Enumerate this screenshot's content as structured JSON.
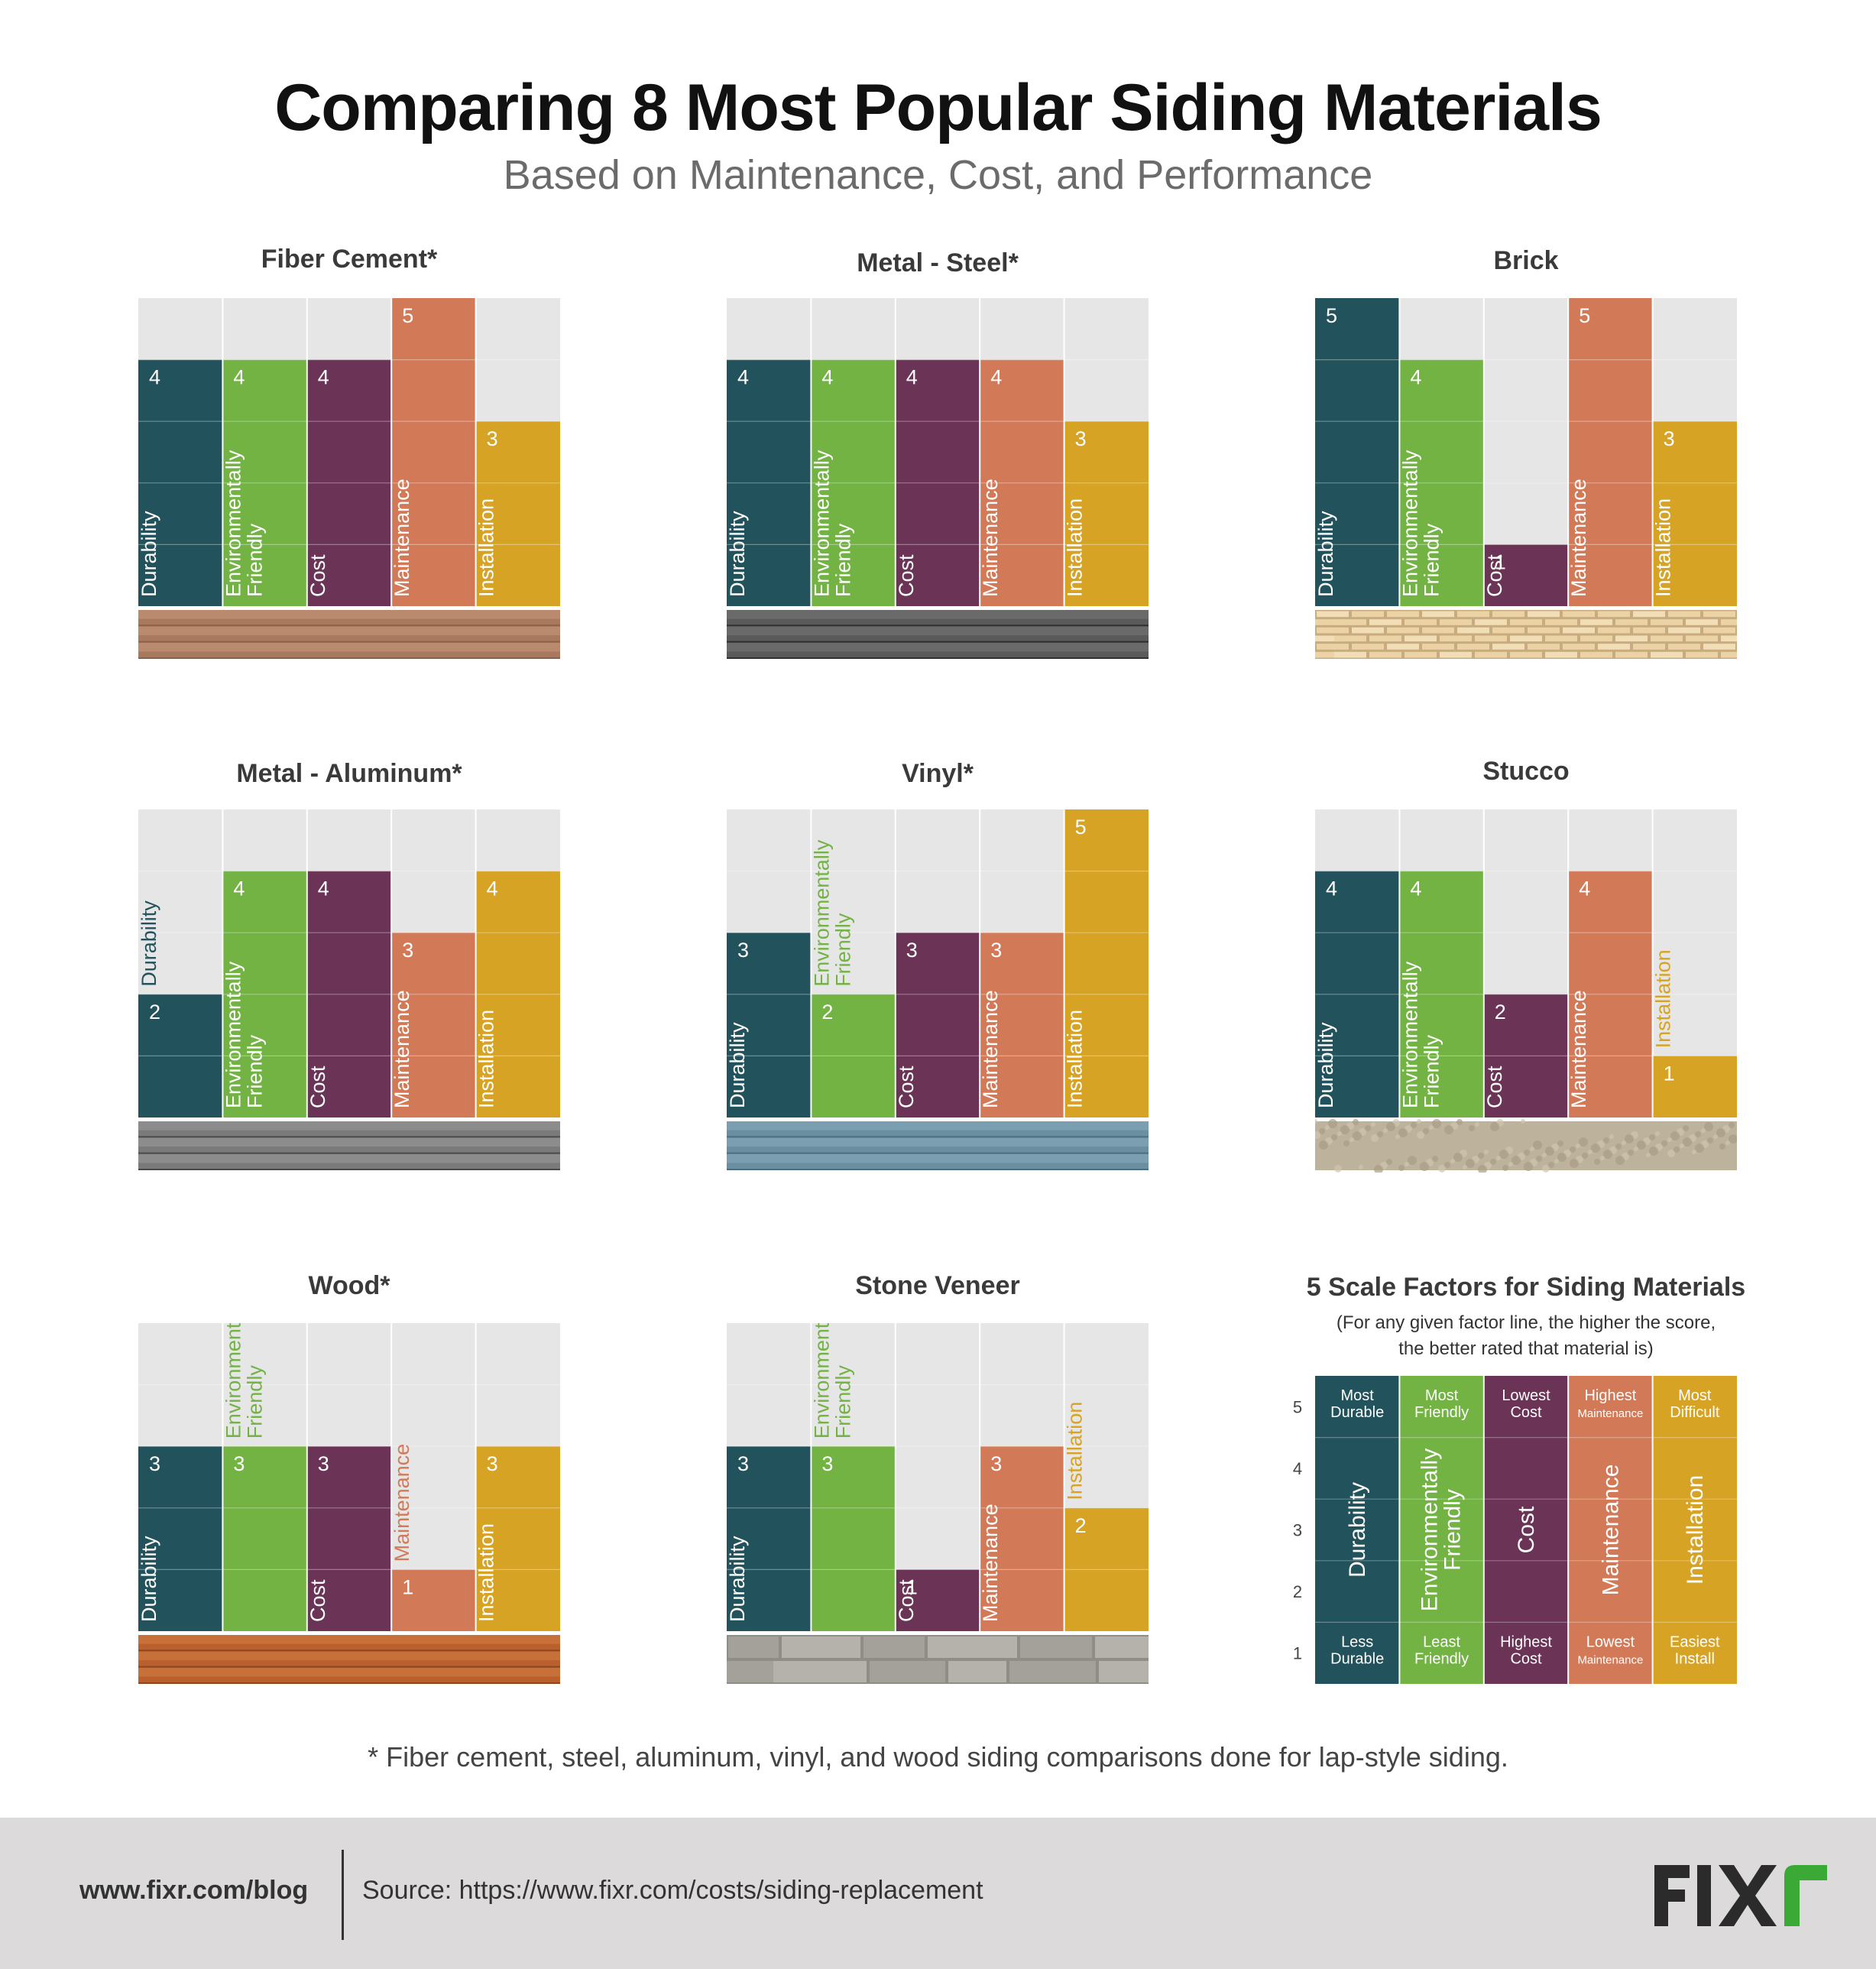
{
  "header": {
    "title": "Comparing 8 Most Popular Siding Materials",
    "subtitle": "Based on Maintenance, Cost, and Performance"
  },
  "colors": {
    "durability": "#22525b",
    "environment": "#72b343",
    "cost": "#6b3356",
    "maintenance": "#d27a58",
    "installation": "#d6a324",
    "grid_bg": "#e6e6e6"
  },
  "chart_data": [
    {
      "type": "bar",
      "title": "Fiber Cement*",
      "categories": [
        "Durability",
        "Environmentally Friendly",
        "Cost",
        "Maintenance",
        "Installation"
      ],
      "values": [
        4,
        4,
        4,
        5,
        3
      ],
      "ylim": [
        0,
        5
      ],
      "texture": "fiber-cement-lap"
    },
    {
      "type": "bar",
      "title": "Metal - Steel*",
      "categories": [
        "Durability",
        "Environmentally Friendly",
        "Cost",
        "Maintenance",
        "Installation"
      ],
      "values": [
        4,
        4,
        4,
        4,
        3
      ],
      "ylim": [
        0,
        5
      ],
      "texture": "steel-lap"
    },
    {
      "type": "bar",
      "title": "Brick",
      "categories": [
        "Durability",
        "Environmentally Friendly",
        "Cost",
        "Maintenance",
        "Installation"
      ],
      "values": [
        5,
        4,
        1,
        5,
        3
      ],
      "ylim": [
        0,
        5
      ],
      "texture": "brick"
    },
    {
      "type": "bar",
      "title": "Metal - Aluminum*",
      "categories": [
        "Durability",
        "Environmentally Friendly",
        "Cost",
        "Maintenance",
        "Installation"
      ],
      "values": [
        2,
        4,
        4,
        3,
        4
      ],
      "ylim": [
        0,
        5
      ],
      "texture": "aluminum-lap"
    },
    {
      "type": "bar",
      "title": "Vinyl*",
      "categories": [
        "Durability",
        "Environmentally Friendly",
        "Cost",
        "Maintenance",
        "Installation"
      ],
      "values": [
        3,
        2,
        3,
        3,
        5
      ],
      "ylim": [
        0,
        5
      ],
      "texture": "vinyl-lap"
    },
    {
      "type": "bar",
      "title": "Stucco",
      "categories": [
        "Durability",
        "Environmentally Friendly",
        "Cost",
        "Maintenance",
        "Installation"
      ],
      "values": [
        4,
        4,
        2,
        4,
        1
      ],
      "ylim": [
        0,
        5
      ],
      "texture": "stucco"
    },
    {
      "type": "bar",
      "title": "Wood*",
      "categories": [
        "Durability",
        "Environmentally Friendly",
        "Cost",
        "Maintenance",
        "Installation"
      ],
      "values": [
        3,
        3,
        3,
        1,
        3
      ],
      "ylim": [
        0,
        5
      ],
      "texture": "wood-lap"
    },
    {
      "type": "bar",
      "title": "Stone Veneer",
      "categories": [
        "Durability",
        "Environmentally Friendly",
        "Cost",
        "Maintenance",
        "Installation"
      ],
      "values": [
        3,
        3,
        1,
        3,
        2
      ],
      "ylim": [
        0,
        5
      ],
      "texture": "stone"
    }
  ],
  "legend": {
    "title": "5 Scale Factors for Siding Materials",
    "note_line1": "(For any given factor line, the higher the score,",
    "note_line2": "the better rated that material is)",
    "scale": [
      "5",
      "4",
      "3",
      "2",
      "1"
    ],
    "factors": [
      {
        "label": "Durability",
        "top": [
          "Most",
          "Durable"
        ],
        "bottom": [
          "Less",
          "Durable"
        ]
      },
      {
        "label": "Environmentally Friendly",
        "top": [
          "Most",
          "Friendly"
        ],
        "bottom": [
          "Least",
          "Friendly"
        ]
      },
      {
        "label": "Cost",
        "top": [
          "Lowest",
          "Cost"
        ],
        "bottom": [
          "Highest",
          "Cost"
        ]
      },
      {
        "label": "Maintenance",
        "top": [
          "Highest",
          "Maintenance"
        ],
        "bottom": [
          "Lowest",
          "Maintenance"
        ]
      },
      {
        "label": "Installation",
        "top": [
          "Most",
          "Difficult"
        ],
        "bottom": [
          "Easiest",
          "Install"
        ]
      }
    ]
  },
  "footnote": "* Fiber cement, steel, aluminum, vinyl, and wood siding comparisons done for lap-style siding.",
  "footer": {
    "url": "www.fixr.com/blog",
    "source": "Source: https://www.fixr.com/costs/siding-replacement",
    "logo": "FIXr"
  }
}
